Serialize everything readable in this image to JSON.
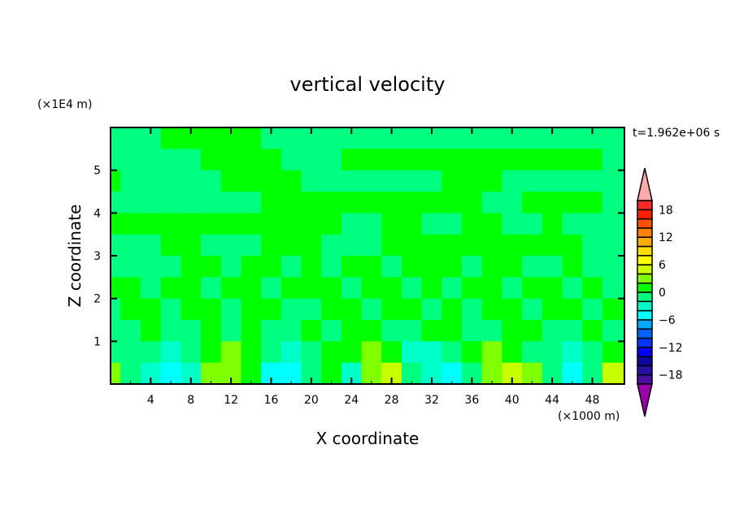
{
  "chart_data": {
    "type": "heatmap",
    "title": "vertical velocity",
    "xlabel": "X coordinate",
    "ylabel": "Z coordinate",
    "x_unit": "(×1000 m)",
    "y_unit": "(×1E4 m)",
    "time_label": "t=1.962e+06 s",
    "xlim": [
      0,
      51.2
    ],
    "ylim": [
      0,
      6
    ],
    "x_ticks": [
      4,
      8,
      12,
      16,
      20,
      24,
      28,
      32,
      36,
      40,
      44,
      48
    ],
    "y_ticks": [
      1,
      2,
      3,
      4,
      5
    ],
    "colorbar": {
      "levels": [
        -20,
        -18,
        -16,
        -14,
        -12,
        -10,
        -8,
        -6,
        -4,
        -2,
        0,
        2,
        4,
        6,
        8,
        10,
        12,
        14,
        16,
        18,
        20
      ],
      "tick_labels": [
        "18",
        "12",
        "6",
        "0",
        "-6",
        "-12",
        "-18"
      ],
      "tick_values": [
        18,
        12,
        6,
        0,
        -6,
        -12,
        -18
      ],
      "colors": [
        "#9900AA",
        "#4B0FA0",
        "#2810A5",
        "#0A0A9E",
        "#0000FF",
        "#0036FF",
        "#0064FF",
        "#00A8FF",
        "#00FFFF",
        "#00FFC8",
        "#00FF80",
        "#00FF00",
        "#80FF00",
        "#C8FF00",
        "#FFFF00",
        "#FFDC00",
        "#FFAA00",
        "#FF8000",
        "#FF5000",
        "#FF2000",
        "#FF2828",
        "#FFAAAA"
      ],
      "extend": "both"
    },
    "grid_x": [
      0,
      2,
      4,
      6,
      8,
      10,
      12,
      14,
      16,
      18,
      20,
      22,
      24,
      26,
      28,
      30,
      32,
      34,
      36,
      38,
      40,
      42,
      44,
      46,
      48,
      50
    ],
    "grid_z": [
      5.75,
      5.25,
      4.75,
      4.25,
      3.75,
      3.25,
      2.75,
      2.25,
      1.75,
      1.25,
      0.75,
      0.25
    ],
    "values": [
      [
        -1,
        -1,
        -1,
        1,
        1,
        1,
        1,
        1,
        -1,
        -1,
        -1,
        -1,
        -1,
        -1,
        -1,
        -1,
        -1,
        -1,
        -1,
        -1,
        -1,
        -1,
        -1,
        -1,
        -1,
        -1
      ],
      [
        -1,
        -1,
        -1,
        -1,
        -1,
        1,
        1,
        1,
        1,
        -1,
        -1,
        -1,
        1,
        1,
        1,
        1,
        1,
        1,
        1,
        1,
        1,
        1,
        1,
        1,
        1,
        -1
      ],
      [
        1,
        -1,
        -1,
        -1,
        -1,
        -1,
        1,
        1,
        1,
        1,
        -1,
        -1,
        -1,
        -1,
        -1,
        -1,
        -1,
        1,
        1,
        1,
        -1,
        -1,
        -1,
        -1,
        -1,
        -1
      ],
      [
        -1,
        -1,
        -1,
        -1,
        -1,
        -1,
        -1,
        -1,
        1,
        1,
        1,
        1,
        1,
        1,
        1,
        1,
        1,
        1,
        1,
        -1,
        -1,
        1,
        1,
        1,
        1,
        -1
      ],
      [
        1,
        1,
        1,
        1,
        1,
        1,
        1,
        1,
        1,
        1,
        1,
        1,
        -1,
        -1,
        1,
        1,
        -1,
        -1,
        1,
        1,
        -1,
        -1,
        1,
        -1,
        -1,
        -1
      ],
      [
        -1,
        -1,
        -1,
        1,
        1,
        -1,
        -1,
        -1,
        1,
        1,
        1,
        -1,
        -1,
        -1,
        1,
        1,
        1,
        1,
        1,
        1,
        1,
        1,
        1,
        1,
        -1,
        -1
      ],
      [
        -1,
        -1,
        -1,
        -1,
        1,
        1,
        -1,
        1,
        1,
        -1,
        1,
        -1,
        1,
        1,
        -1,
        1,
        1,
        1,
        -1,
        1,
        1,
        -1,
        -1,
        1,
        -1,
        -1
      ],
      [
        1,
        1,
        -1,
        1,
        1,
        -1,
        1,
        1,
        -1,
        1,
        1,
        1,
        -1,
        1,
        1,
        -1,
        1,
        -1,
        1,
        1,
        -1,
        1,
        1,
        -1,
        1,
        -1
      ],
      [
        -1,
        1,
        1,
        -1,
        1,
        1,
        -1,
        1,
        1,
        -1,
        -1,
        1,
        1,
        -1,
        1,
        1,
        -1,
        1,
        -1,
        1,
        1,
        -1,
        1,
        1,
        -1,
        1
      ],
      [
        -1,
        -1,
        1,
        -1,
        -1,
        1,
        -1,
        1,
        -1,
        -1,
        1,
        -1,
        1,
        1,
        -1,
        -1,
        1,
        1,
        -1,
        -1,
        1,
        1,
        -1,
        -1,
        1,
        -1
      ],
      [
        -1,
        -1,
        -1,
        -3,
        -1,
        1,
        3,
        1,
        -1,
        -3,
        -1,
        1,
        1,
        3,
        1,
        -3,
        -3,
        -1,
        1,
        3,
        1,
        -1,
        -1,
        -3,
        -1,
        1
      ],
      [
        3,
        -1,
        -3,
        -5,
        -3,
        3,
        3,
        1,
        -5,
        -5,
        -1,
        1,
        -3,
        3,
        5,
        -1,
        -3,
        -5,
        -1,
        3,
        5,
        3,
        -1,
        -5,
        -1,
        5
      ]
    ]
  }
}
